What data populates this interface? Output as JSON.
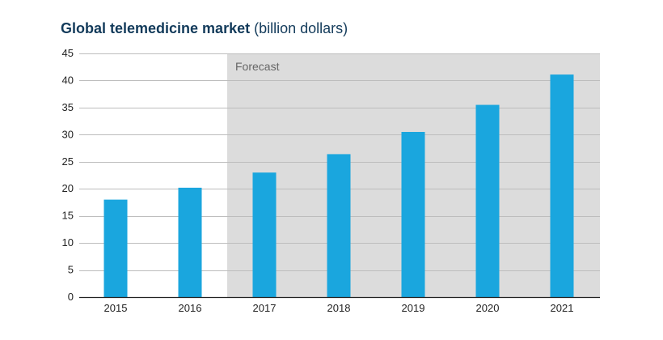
{
  "title": {
    "bold": "Global telemedicine market",
    "unit": "(billion dollars)"
  },
  "colors": {
    "bar": "#1aa6de",
    "forecast_band": "#dcdcdc",
    "grid": "#bdbdbd",
    "title": "#123a5a"
  },
  "chart_data": {
    "type": "bar",
    "title": "Global telemedicine market (billion dollars)",
    "xlabel": "",
    "ylabel": "",
    "ylim": [
      0,
      45
    ],
    "yticks": [
      0,
      5,
      10,
      15,
      20,
      25,
      30,
      35,
      40,
      45
    ],
    "grid": true,
    "categories": [
      "2015",
      "2016",
      "2017",
      "2018",
      "2019",
      "2020",
      "2021"
    ],
    "values": [
      18.0,
      20.2,
      23.0,
      26.4,
      30.5,
      35.5,
      41.1
    ],
    "annotations": [
      {
        "text": "Forecast",
        "shaded_from": "2017",
        "shaded_to": "2021"
      }
    ]
  }
}
